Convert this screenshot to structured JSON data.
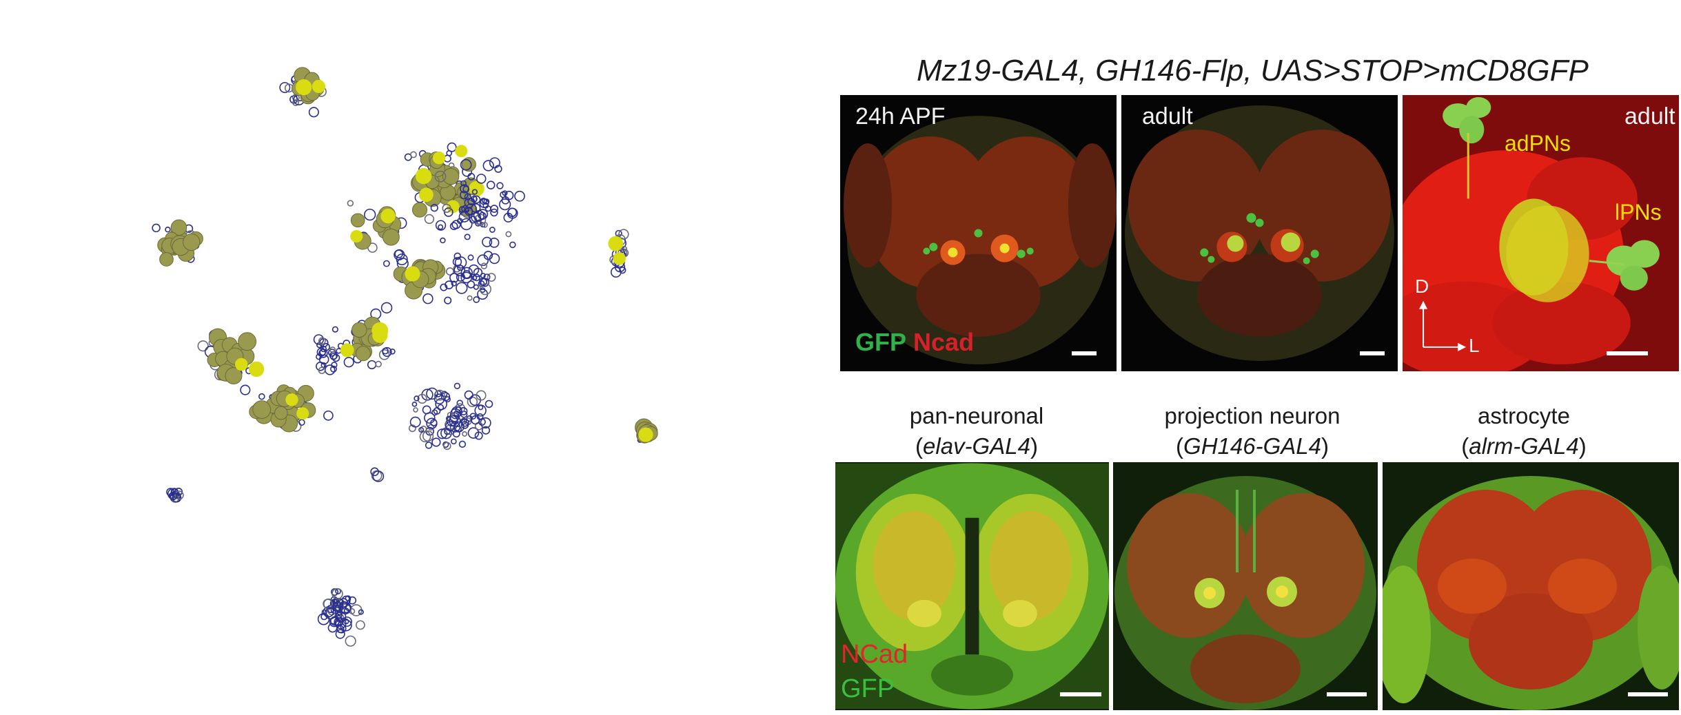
{
  "figure": {
    "top_title": "Mz19-GAL4, GH146-Flp, UAS>STOP>mCD8GFP",
    "top_panels": [
      {
        "label": "24h APF",
        "legend_gfp": "GFP",
        "legend_ncad": "Ncad"
      },
      {
        "label": "adult"
      },
      {
        "label": "adult",
        "adpns": "adPNs",
        "lpns": "lPNs",
        "axis_d": "D",
        "axis_l": "L"
      }
    ],
    "bottom_panels": [
      {
        "caption_line1": "pan-neuronal",
        "caption_open": "(",
        "caption_italic": "elav-GAL4",
        "caption_close": ")",
        "legend_ncad": "NCad",
        "legend_gfp": "GFP"
      },
      {
        "caption_line1": "projection neuron",
        "caption_open": "(",
        "caption_italic": "GH146-GAL4",
        "caption_close": ")"
      },
      {
        "caption_line1": "astrocyte",
        "caption_open": "(",
        "caption_italic": "alrm-GAL4",
        "caption_close": ")"
      }
    ],
    "colors": {
      "blue_marker": "#2b2f8f",
      "olive_marker": "#9a9a4e",
      "yellow_marker": "#d8dc10",
      "ncad_red": "#d8202a",
      "gfp_green": "#2fb24a"
    }
  }
}
